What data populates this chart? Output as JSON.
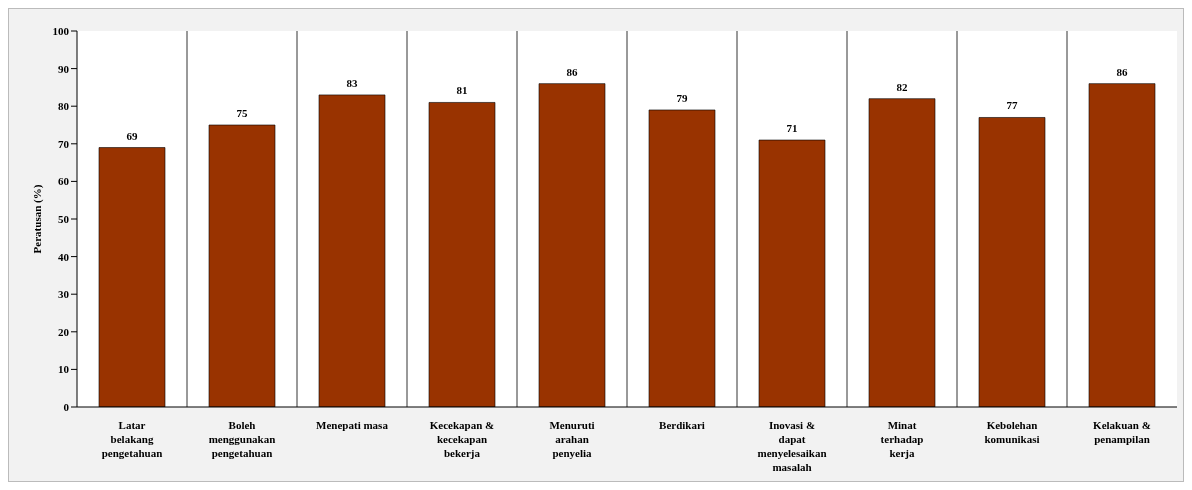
{
  "chart_data": {
    "type": "bar",
    "ylabel": "Peratusan (%)",
    "categories": [
      "Latar belakang pengetahuan",
      "Boleh menggunakan pengetahuan",
      "Menepati masa",
      "Kecekapan & kecekapan bekerja",
      "Menuruti arahan penyelia",
      "Berdikari",
      "Inovasi & dapat menyelesaikan masalah",
      "Minat terhadap kerja",
      "Kebolehan komunikasi",
      "Kelakuan & penampilan"
    ],
    "values": [
      69,
      75,
      83,
      81,
      86,
      79,
      71,
      82,
      77,
      86
    ],
    "color": "#993300",
    "ylim": [
      0,
      100
    ],
    "yticks": [
      0,
      10,
      20,
      30,
      40,
      50,
      60,
      70,
      80,
      90,
      100
    ],
    "grid": "x",
    "data_labels": true
  }
}
